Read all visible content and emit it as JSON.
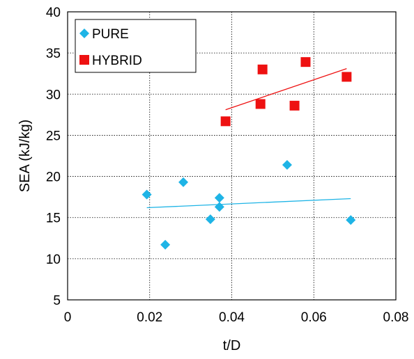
{
  "chart_data": {
    "type": "scatter",
    "xlabel": "t/D",
    "ylabel": "SEA (kJ/kg)",
    "xlim": [
      0,
      0.08
    ],
    "ylim": [
      5,
      40
    ],
    "x_ticks": [
      {
        "value": 0,
        "label": "0"
      },
      {
        "value": 0.02,
        "label": "0.02"
      },
      {
        "value": 0.04,
        "label": "0.04"
      },
      {
        "value": 0.06,
        "label": "0.06"
      },
      {
        "value": 0.08,
        "label": "0.08"
      }
    ],
    "y_ticks": [
      {
        "value": 5,
        "label": "5"
      },
      {
        "value": 10,
        "label": "10"
      },
      {
        "value": 15,
        "label": "15"
      },
      {
        "value": 20,
        "label": "20"
      },
      {
        "value": 25,
        "label": "25"
      },
      {
        "value": 30,
        "label": "30"
      },
      {
        "value": 35,
        "label": "35"
      },
      {
        "value": 40,
        "label": "40"
      }
    ],
    "grid": "dotted",
    "legend_position": "top-left",
    "series": [
      {
        "name": "PURE",
        "marker": "diamond",
        "color": "#1EB4E6",
        "points": [
          {
            "x": 0.0193,
            "y": 17.8
          },
          {
            "x": 0.0238,
            "y": 11.7
          },
          {
            "x": 0.0282,
            "y": 19.3
          },
          {
            "x": 0.0348,
            "y": 14.8
          },
          {
            "x": 0.037,
            "y": 17.4
          },
          {
            "x": 0.037,
            "y": 16.3
          },
          {
            "x": 0.0535,
            "y": 21.4
          },
          {
            "x": 0.069,
            "y": 14.7
          }
        ],
        "trendline": [
          {
            "x": 0.0193,
            "y": 16.2
          },
          {
            "x": 0.069,
            "y": 17.3
          }
        ]
      },
      {
        "name": "HYBRID",
        "marker": "square",
        "color": "#EE1111",
        "points": [
          {
            "x": 0.0385,
            "y": 26.7
          },
          {
            "x": 0.047,
            "y": 28.8
          },
          {
            "x": 0.0475,
            "y": 33.0
          },
          {
            "x": 0.0553,
            "y": 28.6
          },
          {
            "x": 0.058,
            "y": 33.9
          },
          {
            "x": 0.068,
            "y": 32.1
          }
        ],
        "trendline": [
          {
            "x": 0.0385,
            "y": 28.1
          },
          {
            "x": 0.068,
            "y": 33.1
          }
        ]
      }
    ]
  }
}
